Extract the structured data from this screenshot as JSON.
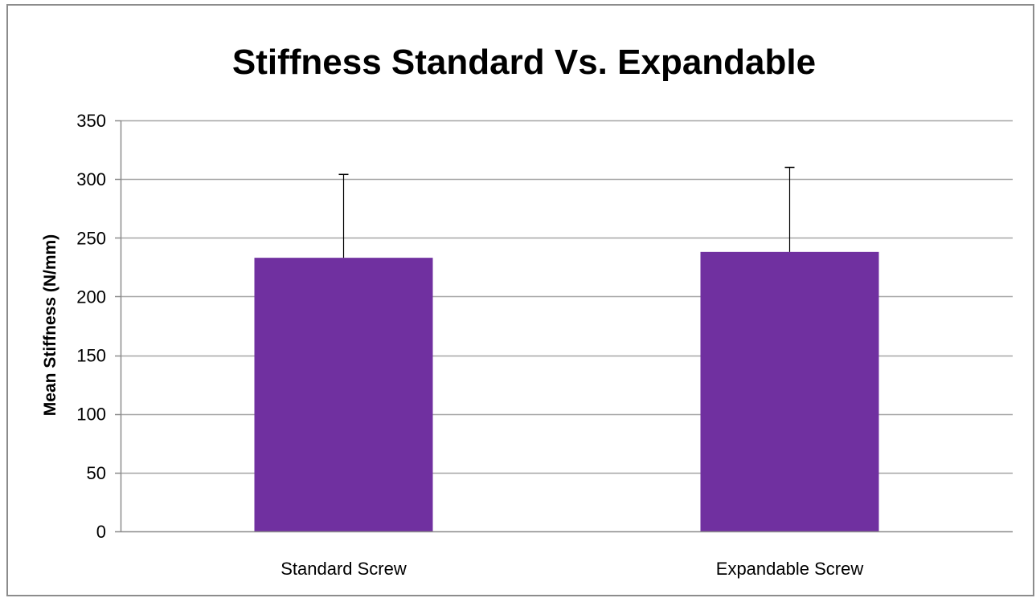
{
  "chart_data": {
    "type": "bar",
    "title": "Stiffness Standard Vs. Expandable",
    "xlabel": "",
    "ylabel": "Mean Stiffness (N/mm)",
    "categories": [
      "Standard Screw",
      "Expandable Screw"
    ],
    "values": [
      233,
      238
    ],
    "error_upper": [
      71,
      72
    ],
    "ylim": [
      0,
      350
    ],
    "yticks": [
      0,
      50,
      100,
      150,
      200,
      250,
      300,
      350
    ],
    "grid": true,
    "legend": "none",
    "bar_color": "#7030a0",
    "grid_color": "#a6a6a6",
    "error_bar_color": "#000000"
  }
}
